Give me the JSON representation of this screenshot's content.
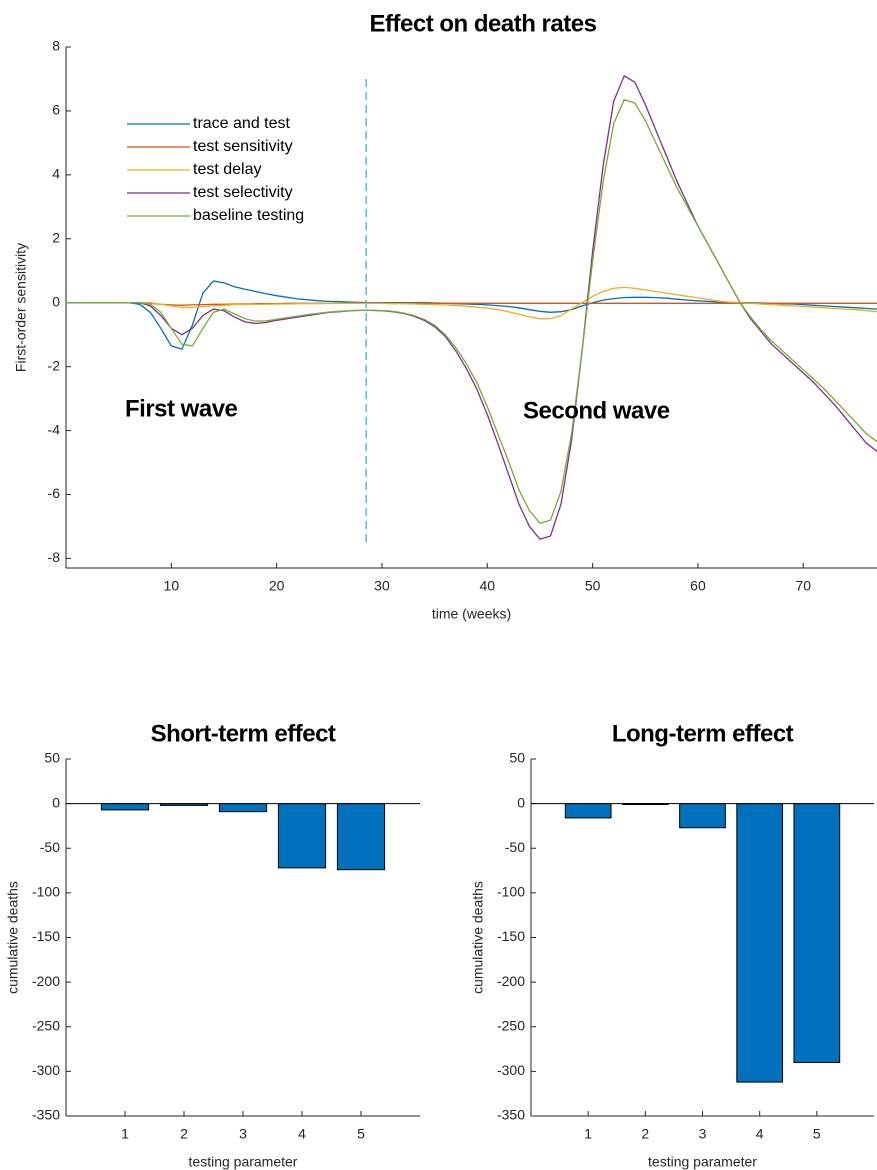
{
  "chart_data": [
    {
      "type": "line",
      "title": "Effect on death rates",
      "xlabel": "time (weeks)",
      "ylabel": "First-order sensitivity",
      "annotations": [
        "First wave",
        "Second wave"
      ],
      "vline": {
        "x": 28.5,
        "y": [
          7,
          -7.5
        ],
        "color": "#4DBEEE"
      },
      "legend": "northwest",
      "xlim": [
        0,
        77
      ],
      "ylim": [
        -8.3,
        8
      ],
      "xticks": [
        10,
        20,
        30,
        40,
        50,
        60,
        70
      ],
      "yticks": [
        -8,
        -6,
        -4,
        -2,
        0,
        2,
        4,
        6,
        8
      ],
      "x": [
        0,
        1,
        2,
        3,
        4,
        5,
        6,
        7,
        8,
        9,
        10,
        11,
        12,
        13,
        14,
        15,
        16,
        17,
        18,
        19,
        20,
        21,
        22,
        23,
        24,
        25,
        26,
        27,
        28,
        29,
        30,
        31,
        32,
        33,
        34,
        35,
        36,
        37,
        38,
        39,
        40,
        41,
        42,
        43,
        44,
        45,
        46,
        47,
        48,
        49,
        50,
        51,
        52,
        53,
        54,
        55,
        56,
        57,
        58,
        59,
        60,
        61,
        62,
        63,
        64,
        65,
        66,
        67,
        68,
        69,
        70,
        71,
        72,
        73,
        74,
        75,
        76,
        77
      ],
      "series": [
        {
          "name": "trace and test",
          "color": "#0072BD",
          "values": [
            0,
            0,
            0,
            0,
            0,
            0,
            0,
            -0.05,
            -0.3,
            -0.8,
            -1.35,
            -1.45,
            -0.7,
            0.3,
            0.68,
            0.62,
            0.5,
            0.42,
            0.35,
            0.28,
            0.22,
            0.17,
            0.12,
            0.09,
            0.06,
            0.04,
            0.03,
            0.02,
            0.01,
            0,
            0,
            0,
            0,
            0,
            0,
            -0.01,
            -0.02,
            -0.03,
            -0.04,
            -0.05,
            -0.07,
            -0.09,
            -0.12,
            -0.16,
            -0.22,
            -0.27,
            -0.3,
            -0.28,
            -0.22,
            -0.1,
            0,
            0.08,
            0.13,
            0.16,
            0.17,
            0.17,
            0.16,
            0.14,
            0.11,
            0.08,
            0.06,
            0.04,
            0.02,
            0.01,
            0,
            0,
            -0.01,
            -0.02,
            -0.03,
            -0.04,
            -0.06,
            -0.08,
            -0.1,
            -0.12,
            -0.14,
            -0.16,
            -0.18,
            -0.2
          ]
        },
        {
          "name": "test sensitivity",
          "color": "#D95319",
          "values": [
            0,
            0,
            0,
            0,
            0,
            0,
            0,
            0,
            -0.02,
            -0.05,
            -0.07,
            -0.08,
            -0.07,
            -0.06,
            -0.05,
            -0.05,
            -0.04,
            -0.04,
            -0.03,
            -0.03,
            -0.03,
            -0.02,
            -0.02,
            -0.02,
            -0.02,
            -0.02,
            -0.02,
            -0.02,
            -0.02,
            -0.02,
            -0.02,
            -0.02,
            -0.02,
            -0.02,
            -0.02,
            -0.02,
            -0.02,
            -0.02,
            -0.02,
            -0.02,
            -0.02,
            -0.02,
            -0.02,
            -0.02,
            -0.02,
            -0.02,
            -0.02,
            -0.02,
            -0.02,
            -0.02,
            -0.02,
            -0.02,
            -0.02,
            -0.02,
            -0.02,
            -0.02,
            -0.02,
            -0.02,
            -0.02,
            -0.02,
            -0.02,
            -0.02,
            -0.02,
            -0.02,
            -0.02,
            -0.02,
            -0.02,
            -0.02,
            -0.02,
            -0.02,
            -0.02,
            -0.02,
            -0.02,
            -0.02,
            -0.02,
            -0.02,
            -0.02,
            -0.02
          ]
        },
        {
          "name": "test delay",
          "color": "#EDB120",
          "values": [
            0,
            0,
            0,
            0,
            0,
            0,
            0,
            0,
            0,
            -0.05,
            -0.1,
            -0.15,
            -0.15,
            -0.12,
            -0.1,
            -0.08,
            -0.06,
            -0.06,
            -0.05,
            -0.05,
            -0.04,
            -0.04,
            -0.03,
            -0.03,
            -0.03,
            -0.02,
            -0.02,
            -0.02,
            -0.02,
            -0.02,
            -0.02,
            -0.03,
            -0.03,
            -0.04,
            -0.05,
            -0.06,
            -0.07,
            -0.09,
            -0.11,
            -0.14,
            -0.17,
            -0.22,
            -0.28,
            -0.36,
            -0.44,
            -0.5,
            -0.5,
            -0.4,
            -0.2,
            0,
            0.2,
            0.35,
            0.45,
            0.48,
            0.45,
            0.4,
            0.35,
            0.3,
            0.25,
            0.2,
            0.15,
            0.1,
            0.05,
            0.02,
            0,
            -0.02,
            -0.04,
            -0.06,
            -0.08,
            -0.1,
            -0.12,
            -0.14,
            -0.16,
            -0.18,
            -0.2,
            -0.22,
            -0.25,
            -0.28
          ]
        },
        {
          "name": "test selectivity",
          "color": "#7E2F8E",
          "values": [
            0,
            0,
            0,
            0,
            0,
            0,
            0,
            0,
            -0.1,
            -0.4,
            -0.8,
            -1.0,
            -0.8,
            -0.4,
            -0.2,
            -0.25,
            -0.45,
            -0.6,
            -0.65,
            -0.62,
            -0.55,
            -0.5,
            -0.45,
            -0.4,
            -0.35,
            -0.3,
            -0.28,
            -0.25,
            -0.24,
            -0.24,
            -0.25,
            -0.28,
            -0.33,
            -0.42,
            -0.55,
            -0.75,
            -1.05,
            -1.5,
            -2.05,
            -2.7,
            -3.5,
            -4.4,
            -5.35,
            -6.3,
            -7.0,
            -7.4,
            -7.3,
            -6.3,
            -4.3,
            -1.5,
            1.6,
            4.3,
            6.3,
            7.1,
            6.9,
            6.2,
            5.4,
            4.6,
            3.8,
            3.1,
            2.4,
            1.8,
            1.2,
            0.6,
            0,
            -0.5,
            -0.9,
            -1.3,
            -1.6,
            -1.9,
            -2.2,
            -2.5,
            -2.85,
            -3.2,
            -3.6,
            -4.0,
            -4.4,
            -4.65
          ]
        },
        {
          "name": "baseline testing",
          "color": "#77AC30",
          "values": [
            0,
            0,
            0,
            0,
            0,
            0,
            0,
            0,
            -0.05,
            -0.3,
            -0.8,
            -1.3,
            -1.35,
            -0.8,
            -0.3,
            -0.2,
            -0.35,
            -0.5,
            -0.58,
            -0.57,
            -0.52,
            -0.47,
            -0.42,
            -0.37,
            -0.33,
            -0.29,
            -0.27,
            -0.25,
            -0.24,
            -0.24,
            -0.25,
            -0.27,
            -0.32,
            -0.4,
            -0.52,
            -0.7,
            -1.0,
            -1.4,
            -1.9,
            -2.5,
            -3.25,
            -4.1,
            -4.95,
            -5.85,
            -6.5,
            -6.9,
            -6.8,
            -5.9,
            -4.1,
            -1.5,
            1.3,
            3.8,
            5.6,
            6.35,
            6.25,
            5.7,
            5.0,
            4.3,
            3.6,
            3.0,
            2.4,
            1.8,
            1.2,
            0.6,
            0,
            -0.45,
            -0.85,
            -1.2,
            -1.5,
            -1.8,
            -2.1,
            -2.4,
            -2.7,
            -3.05,
            -3.4,
            -3.75,
            -4.1,
            -4.35
          ]
        }
      ]
    },
    {
      "type": "bar",
      "title": "Short-term effect",
      "xlabel": "testing parameter",
      "ylabel": "cumulative deaths",
      "x": [
        1,
        2,
        3,
        4,
        5
      ],
      "values": [
        -7,
        -2,
        -9,
        -72,
        -74
      ],
      "color": "#0072BD",
      "xlim": [
        0,
        6
      ],
      "ylim": [
        -350,
        50
      ],
      "xticks": [
        1,
        2,
        3,
        4,
        5
      ],
      "yticks": [
        -350,
        -300,
        -250,
        -200,
        -150,
        -100,
        -50,
        0,
        50
      ]
    },
    {
      "type": "bar",
      "title": "Long-term effect",
      "xlabel": "testing parameter",
      "ylabel": "cumulative deaths",
      "x": [
        1,
        2,
        3,
        4,
        5
      ],
      "values": [
        -16,
        -1,
        -27,
        -312,
        -290
      ],
      "color": "#0072BD",
      "xlim": [
        0,
        6
      ],
      "ylim": [
        -350,
        50
      ],
      "xticks": [
        1,
        2,
        3,
        4,
        5
      ],
      "yticks": [
        -350,
        -300,
        -250,
        -200,
        -150,
        -100,
        -50,
        0,
        50
      ]
    }
  ]
}
